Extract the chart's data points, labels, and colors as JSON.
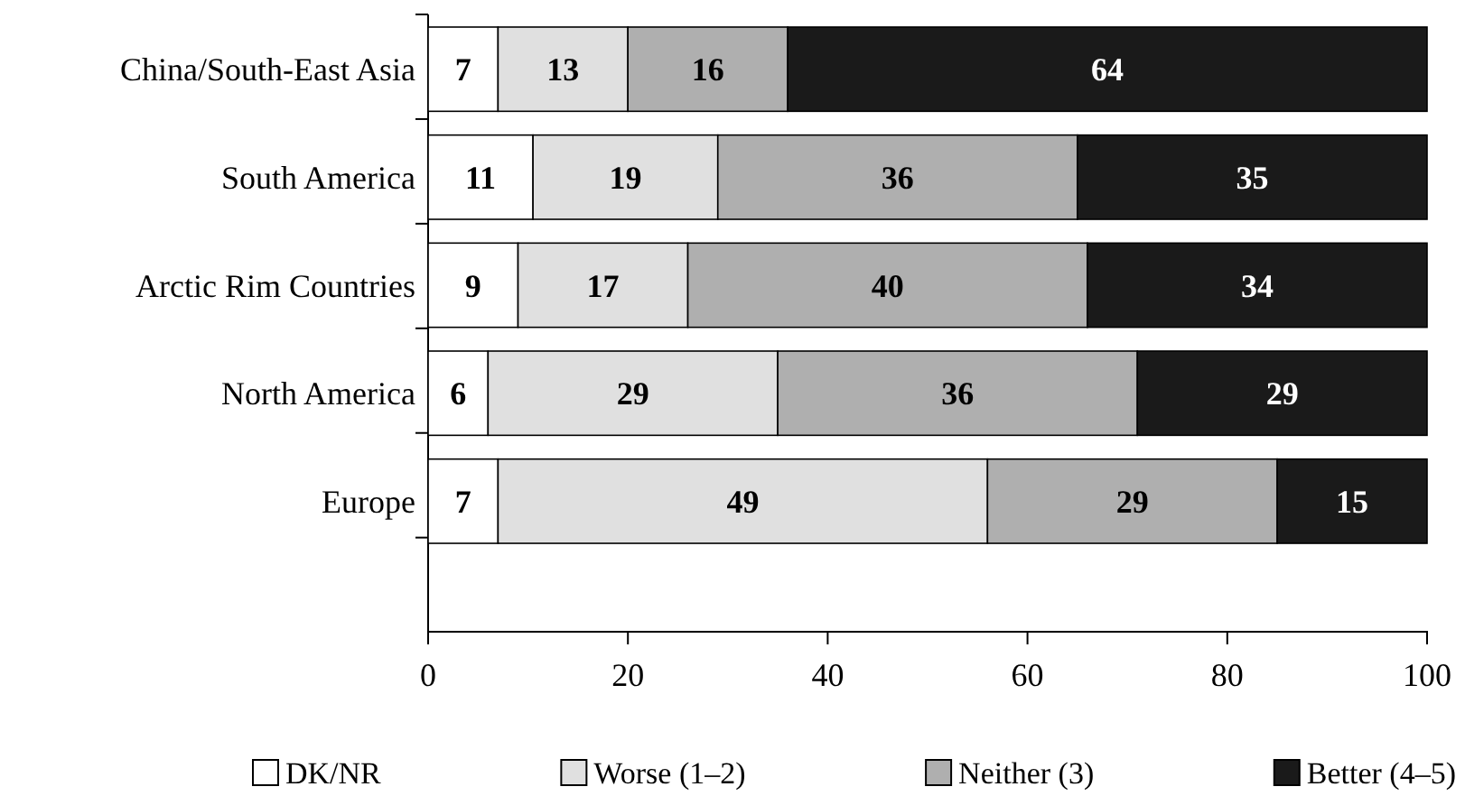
{
  "chart_data": {
    "type": "bar",
    "orientation": "horizontal",
    "stacked": true,
    "legend": "bottom",
    "grid": false,
    "categories": [
      "China/South-East Asia",
      "South America",
      "Arctic Rim Countries",
      "North America",
      "Europe"
    ],
    "series": [
      {
        "name": "DK/NR",
        "color": "#ffffff",
        "values": [
          7,
          10.5,
          9,
          6,
          7
        ],
        "value_labels": [
          "7",
          "11",
          "9",
          "6",
          "7"
        ]
      },
      {
        "name": "Worse (1–2)",
        "color": "#e0e0e0",
        "values": [
          13,
          18.5,
          17,
          29,
          49
        ],
        "value_labels": [
          "13",
          "19",
          "17",
          "29",
          "49"
        ]
      },
      {
        "name": "Neither (3)",
        "color": "#afafaf",
        "values": [
          16,
          36,
          40,
          36,
          29
        ],
        "value_labels": [
          "16",
          "36",
          "40",
          "36",
          "29"
        ]
      },
      {
        "name": "Better (4–5)",
        "color": "#1a1a1a",
        "values": [
          64,
          35,
          34,
          29,
          15
        ],
        "value_labels": [
          "64",
          "35",
          "34",
          "29",
          "15"
        ]
      }
    ],
    "xlim": [
      0,
      100
    ],
    "xticks": [
      0,
      20,
      40,
      60,
      80,
      100
    ]
  }
}
